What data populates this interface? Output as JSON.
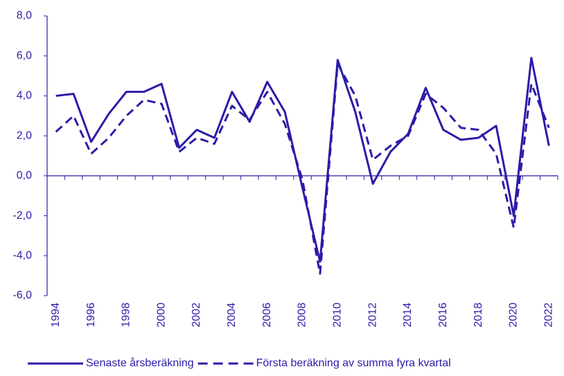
{
  "chart_data": {
    "type": "line",
    "categories": [
      "1994",
      null,
      "1996",
      null,
      "1998",
      null,
      "2000",
      null,
      "2002",
      null,
      "2004",
      null,
      "2006",
      null,
      "2008",
      null,
      "2010",
      null,
      "2012",
      null,
      "2014",
      null,
      "2016",
      null,
      "2018",
      null,
      "2020",
      null,
      "2022"
    ],
    "series": [
      {
        "name": "Senaste årsberäkning",
        "color": "#2b1ca8",
        "dash": false,
        "values": [
          4.0,
          4.1,
          1.7,
          3.1,
          4.2,
          4.2,
          4.6,
          1.4,
          2.3,
          1.9,
          4.2,
          2.7,
          4.7,
          3.2,
          -0.6,
          -4.3,
          5.8,
          3.2,
          -0.4,
          1.2,
          2.1,
          4.4,
          2.3,
          1.8,
          1.9,
          2.5,
          -2.0,
          5.9,
          1.5
        ]
      },
      {
        "name": "Första beräkning av summa fyra kvartal",
        "color": "#2b1ca8",
        "dash": true,
        "values": [
          2.2,
          3.0,
          1.1,
          1.9,
          3.0,
          3.8,
          3.6,
          1.2,
          1.9,
          1.6,
          3.5,
          2.8,
          4.2,
          2.6,
          -0.2,
          -4.9,
          5.6,
          4.0,
          0.8,
          1.5,
          2.0,
          4.1,
          3.4,
          2.4,
          2.3,
          1.1,
          -2.6,
          4.6,
          2.4
        ]
      }
    ],
    "ylim": [
      -6,
      8
    ],
    "yticks": [
      {
        "value": -6,
        "label": "-6,0"
      },
      {
        "value": -4,
        "label": "-4,0"
      },
      {
        "value": -2,
        "label": "-2,0"
      },
      {
        "value": 0,
        "label": "0,0"
      },
      {
        "value": 2,
        "label": "2,0"
      },
      {
        "value": 4,
        "label": "4,0"
      },
      {
        "value": 6,
        "label": "6,0"
      },
      {
        "value": 8,
        "label": "8,0"
      }
    ],
    "grid": false,
    "legend": "bottom"
  }
}
